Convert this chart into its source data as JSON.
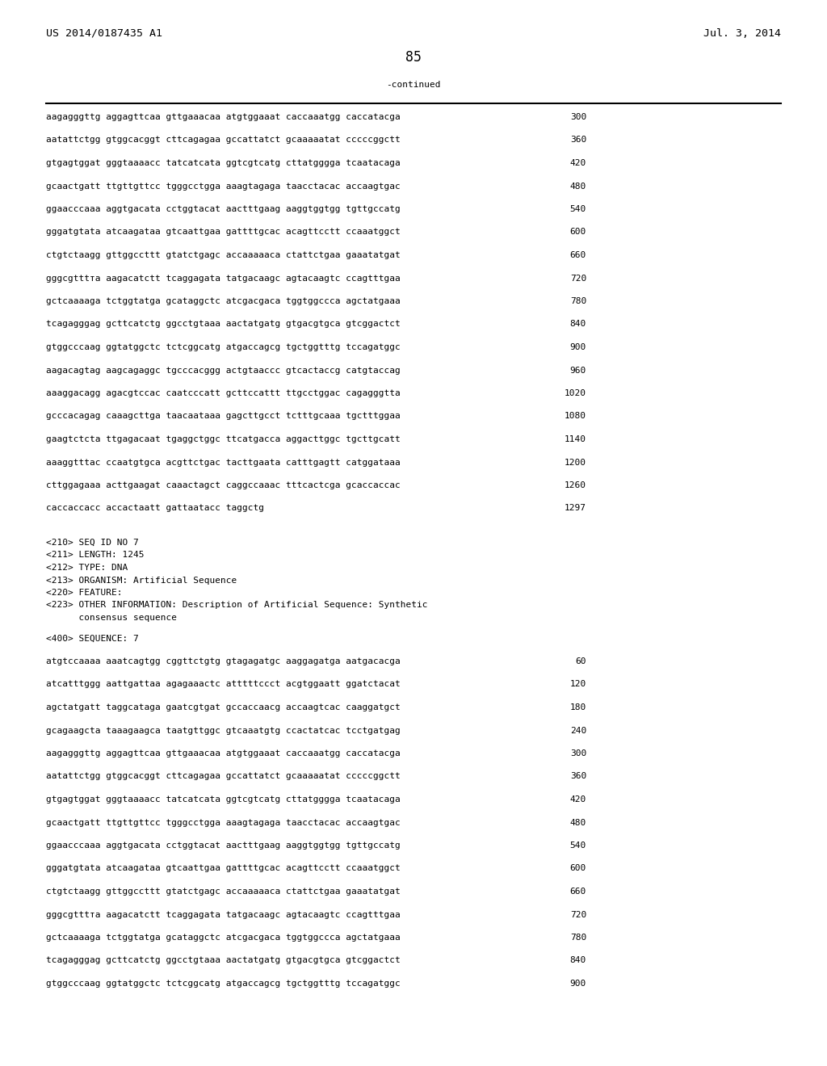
{
  "header_left": "US 2014/0187435 A1",
  "header_right": "Jul. 3, 2014",
  "page_number": "85",
  "continued_label": "-continued",
  "background_color": "#ffffff",
  "text_color": "#000000",
  "font_size_header": 9.5,
  "font_size_body": 8.0,
  "font_size_page": 12.0,
  "sequence_lines_top": [
    [
      "aagagggttg aggagttcaa gttgaaacaa atgtggaaat caccaaatgg caccatacga",
      "300"
    ],
    [
      "aatattctgg gtggcacggt cttcagagaa gccattatct gcaaaaatat cccccggctt",
      "360"
    ],
    [
      "gtgagtggat gggtaaaacc tatcatcata ggtcgtcatg cttatgggga tcaatacaga",
      "420"
    ],
    [
      "gcaactgatt ttgttgttcc tgggcctgga aaagtagaga taacctacac accaagtgac",
      "480"
    ],
    [
      "ggaacccaaa aggtgacata cctggtacat aactttgaag aaggtggtgg tgttgccatg",
      "540"
    ],
    [
      "gggatgtata atcaagataa gtcaattgaa gattttgcac acagttcctt ccaaatggct",
      "600"
    ],
    [
      "ctgtctaagg gttggccttt gtatctgagc accaaaaaca ctattctgaa gaaatatgat",
      "660"
    ],
    [
      "gggcgtttта aagacatctt tcaggagata tatgacaagc agtacaagtc ccagtttgaa",
      "720"
    ],
    [
      "gctcaaaaga tctggtatga gcataggctc atcgacgaca tggtggccca agctatgaaa",
      "780"
    ],
    [
      "tcagagggag gcttcatctg ggcctgtaaa aactatgatg gtgacgtgca gtcggactct",
      "840"
    ],
    [
      "gtggcccaag ggtatggctc tctcggcatg atgaccagcg tgctggtttg tccagatggc",
      "900"
    ],
    [
      "aagacagtag aagcagaggc tgcccacggg actgtaaccc gtcactaccg catgtaccag",
      "960"
    ],
    [
      "aaaggacagg agacgtccac caatcccatt gcttccattt ttgcctggac cagagggtta",
      "1020"
    ],
    [
      "gcccacagag caaagcttga taacaataaa gagcttgcct tctttgcaaa tgctttggaa",
      "1080"
    ],
    [
      "gaagtctcta ttgagacaat tgaggctggc ttcatgacca aggacttggc tgcttgcatt",
      "1140"
    ],
    [
      "aaaggtttac ccaatgtgca acgttctgac tacttgaata catttgagtt catggataaa",
      "1200"
    ],
    [
      "cttggagaaa acttgaagat caaactagct caggccaaac tttcactcga gcaccaccac",
      "1260"
    ],
    [
      "caccaccacc accactaatt gattaatacc taggctg",
      "1297"
    ]
  ],
  "metadata_lines": [
    "<210> SEQ ID NO 7",
    "<211> LENGTH: 1245",
    "<212> TYPE: DNA",
    "<213> ORGANISM: Artificial Sequence",
    "<220> FEATURE:",
    "<223> OTHER INFORMATION: Description of Artificial Sequence: Synthetic",
    "      consensus sequence"
  ],
  "sequence_label": "<400> SEQUENCE: 7",
  "sequence_lines_bottom": [
    [
      "atgtccaaaa aaatcagtgg cggttctgtg gtagagatgc aaggagatga aatgacacga",
      "60"
    ],
    [
      "atcatttggg aattgattaa agagaaactc atttttccct acgtggaatt ggatctacat",
      "120"
    ],
    [
      "agctatgatt taggcataga gaatcgtgat gccaccaacg accaagtcac caaggatgct",
      "180"
    ],
    [
      "gcagaagcta taaagaagca taatgttggc gtcaaatgtg ccactatcac tcctgatgag",
      "240"
    ],
    [
      "aagagggttg aggagttcaa gttgaaacaa atgtggaaat caccaaatgg caccatacga",
      "300"
    ],
    [
      "aatattctgg gtggcacggt cttcagagaa gccattatct gcaaaaatat cccccggctt",
      "360"
    ],
    [
      "gtgagtggat gggtaaaacc tatcatcata ggtcgtcatg cttatgggga tcaatacaga",
      "420"
    ],
    [
      "gcaactgatt ttgttgttcc tgggcctgga aaagtagaga taacctacac accaagtgac",
      "480"
    ],
    [
      "ggaacccaaa aggtgacata cctggtacat aactttgaag aaggtggtgg tgttgccatg",
      "540"
    ],
    [
      "gggatgtata atcaagataa gtcaattgaa gattttgcac acagttcctt ccaaatggct",
      "600"
    ],
    [
      "ctgtctaagg gttggccttt gtatctgagc accaaaaaca ctattctgaa gaaatatgat",
      "660"
    ],
    [
      "gggcgtttта aagacatctt tcaggagata tatgacaagc agtacaagtc ccagtttgaa",
      "720"
    ],
    [
      "gctcaaaaga tctggtatga gcataggctc atcgacgaca tggtggccca agctatgaaa",
      "780"
    ],
    [
      "tcagagggag gcttcatctg ggcctgtaaa aactatgatg gtgacgtgca gtcggactct",
      "840"
    ],
    [
      "gtggcccaag ggtatggctc tctcggcatg atgaccagcg tgctggtttg tccagatggc",
      "900"
    ]
  ]
}
